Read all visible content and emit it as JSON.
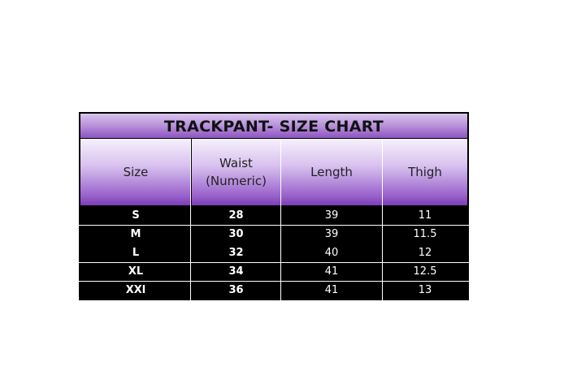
{
  "title": "TRACKPANT- SIZE CHART",
  "headers": [
    "Size",
    "Waist (Numeric)",
    "Length",
    "Thigh"
  ],
  "rows": [
    [
      "S",
      "28",
      "39",
      "11"
    ],
    [
      "M",
      "30",
      "39",
      "11.5"
    ],
    [
      "L",
      "32",
      "40",
      "12"
    ],
    [
      "XL",
      "34",
      "41",
      "12.5"
    ],
    [
      "XXl",
      "36",
      "41",
      "13"
    ]
  ],
  "colors": {
    "header_purple": "#7c3cb6",
    "body_bg": "#000000",
    "text_light": "#ffffff"
  }
}
